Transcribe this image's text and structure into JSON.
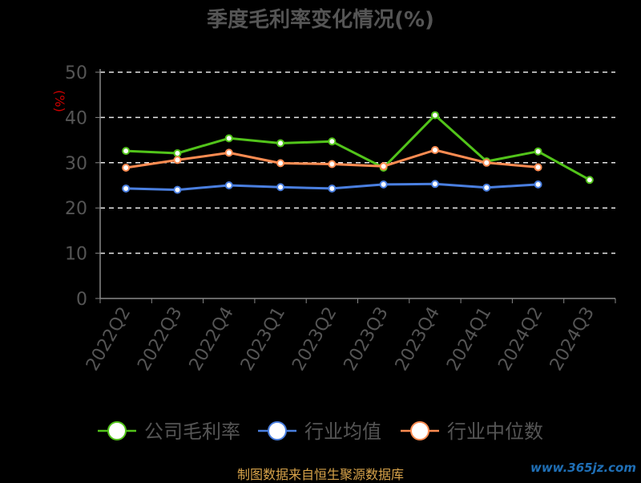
{
  "chart_data": {
    "type": "line",
    "title": "季度毛利率变化情况(%)",
    "ylabel": "(%)",
    "xlabel": "",
    "categories": [
      "2022Q2",
      "2022Q3",
      "2022Q4",
      "2023Q1",
      "2023Q2",
      "2023Q3",
      "2023Q4",
      "2024Q1",
      "2024Q2",
      "2024Q3"
    ],
    "yticks": [
      0,
      10,
      20,
      30,
      40,
      50
    ],
    "ylim": [
      0,
      50
    ],
    "grid": "horizontal-dashed",
    "legend_position": "bottom",
    "series": [
      {
        "name": "公司毛利率",
        "color": "#52c41a",
        "values": [
          32.6,
          32.1,
          35.4,
          34.3,
          34.7,
          28.9,
          40.5,
          30.3,
          32.5,
          26.2
        ]
      },
      {
        "name": "行业均值",
        "color": "#4a7fe0",
        "values": [
          24.3,
          24.0,
          25.0,
          24.6,
          24.3,
          25.2,
          25.3,
          24.5,
          25.2,
          null
        ]
      },
      {
        "name": "行业中位数",
        "color": "#ff8c52",
        "values": [
          28.9,
          30.6,
          32.2,
          29.9,
          29.7,
          29.2,
          32.8,
          30.0,
          29.0,
          null
        ]
      }
    ]
  },
  "footer": {
    "source": "制图数据来自恒生聚源数据库"
  },
  "watermark": {
    "text": "www.365jz.com"
  }
}
